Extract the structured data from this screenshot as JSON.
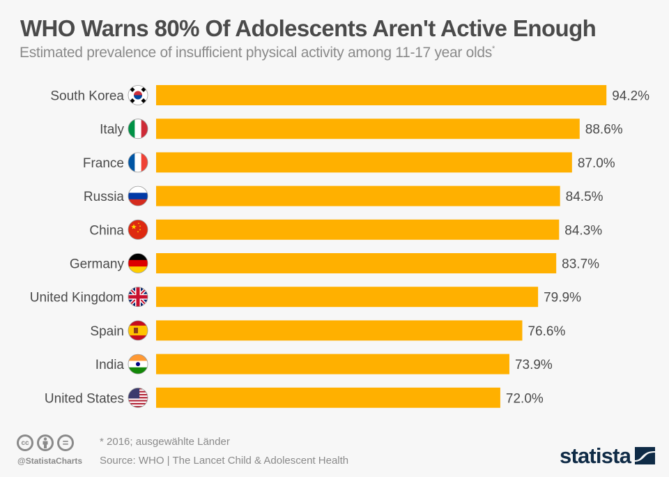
{
  "header": {
    "title": "WHO Warns 80% Of Adolescents Aren't Active Enough",
    "subtitle": "Estimated prevalence of insufficient physical activity among 11-17 year olds",
    "subtitle_marker": "*"
  },
  "colors": {
    "bar": "#ffb000",
    "label_text": "#4a4a4a",
    "muted_text": "#8a8a8a",
    "brand": "#0f2b46",
    "background": "#f7f7f7"
  },
  "chart_data": {
    "type": "bar",
    "orientation": "horizontal",
    "title": "WHO Warns 80% Of Adolescents Aren't Active Enough",
    "subtitle": "Estimated prevalence of insufficient physical activity among 11-17 year olds*",
    "xlabel": "",
    "ylabel": "",
    "unit": "%",
    "xlim": [
      0,
      100
    ],
    "grid": false,
    "categories": [
      "South Korea",
      "Italy",
      "France",
      "Russia",
      "China",
      "Germany",
      "United Kingdom",
      "Spain",
      "India",
      "United States"
    ],
    "values": [
      94.2,
      88.6,
      87.0,
      84.5,
      84.3,
      83.7,
      79.9,
      76.6,
      73.9,
      72.0
    ],
    "data_labels": [
      "94.2%",
      "88.6%",
      "87.0%",
      "84.5%",
      "84.3%",
      "83.7%",
      "79.9%",
      "76.6%",
      "73.9%",
      "72.0%"
    ],
    "flag_icons": [
      "south-korea-flag-icon",
      "italy-flag-icon",
      "france-flag-icon",
      "russia-flag-icon",
      "china-flag-icon",
      "germany-flag-icon",
      "united-kingdom-flag-icon",
      "spain-flag-icon",
      "india-flag-icon",
      "united-states-flag-icon"
    ]
  },
  "footer": {
    "footnote": "* 2016; ausgewählte Länder",
    "source": "Source: WHO | The Lancet Child & Adolescent Health",
    "handle": "@StatistaCharts",
    "cc_icons": [
      "creative-commons-icon",
      "attribution-icon",
      "no-derivatives-icon"
    ],
    "cc_label": "cc",
    "nd_label": "=",
    "brand": "statista"
  }
}
